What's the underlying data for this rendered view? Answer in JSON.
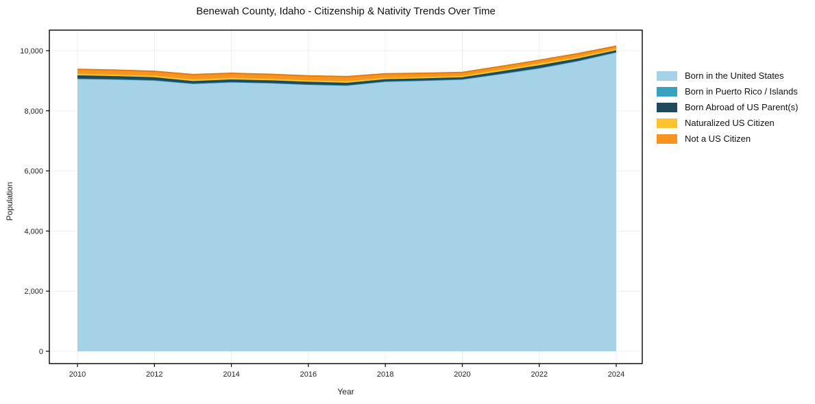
{
  "title": "Benewah County, Idaho - Citizenship & Nativity Trends Over Time",
  "axes": {
    "xlabel": "Year",
    "ylabel": "Population"
  },
  "colors": {
    "spine": "#000000",
    "grid": "#ededed",
    "tick_text": "#222222"
  },
  "chart_data": {
    "type": "area",
    "stacked": true,
    "title": "Benewah County, Idaho - Citizenship & Nativity Trends Over Time",
    "xlabel": "Year",
    "ylabel": "Population",
    "x": [
      2010,
      2011,
      2012,
      2013,
      2014,
      2015,
      2016,
      2017,
      2018,
      2019,
      2020,
      2021,
      2022,
      2023,
      2024
    ],
    "x_ticks": [
      2010,
      2012,
      2014,
      2016,
      2018,
      2020,
      2022,
      2024
    ],
    "y_ticks": [
      0,
      2000,
      4000,
      6000,
      8000,
      10000
    ],
    "ylim": [
      0,
      10000
    ],
    "grid": true,
    "legend_position": "right-outside",
    "series": [
      {
        "name": "Born in the United States",
        "color": "#a5d2e6",
        "edge": "#8abfd8",
        "values": [
          9060,
          9040,
          9010,
          8900,
          8950,
          8920,
          8870,
          8840,
          8970,
          9000,
          9040,
          9220,
          9410,
          9650,
          9940
        ]
      },
      {
        "name": "Born in Puerto Rico / Islands",
        "color": "#38a1c0",
        "edge": "#2d8aa8",
        "values": [
          15,
          15,
          12,
          10,
          10,
          10,
          10,
          12,
          12,
          12,
          12,
          15,
          15,
          15,
          15
        ]
      },
      {
        "name": "Born Abroad of US Parent(s)",
        "color": "#1f4a5c",
        "edge": "#1f4a5c",
        "values": [
          105,
          100,
          95,
          80,
          82,
          84,
          86,
          80,
          70,
          68,
          66,
          80,
          90,
          75,
          60
        ]
      },
      {
        "name": "Naturalized US Citizen",
        "color": "#fcc32e",
        "edge": "#eaae15",
        "values": [
          60,
          60,
          62,
          65,
          64,
          62,
          60,
          64,
          58,
          56,
          55,
          62,
          70,
          62,
          55
        ]
      },
      {
        "name": "Not a US Citizen",
        "color": "#f79320",
        "edge": "#e07d0e",
        "values": [
          140,
          138,
          136,
          150,
          142,
          138,
          136,
          140,
          120,
          112,
          105,
          98,
          95,
          98,
          80
        ]
      }
    ]
  }
}
